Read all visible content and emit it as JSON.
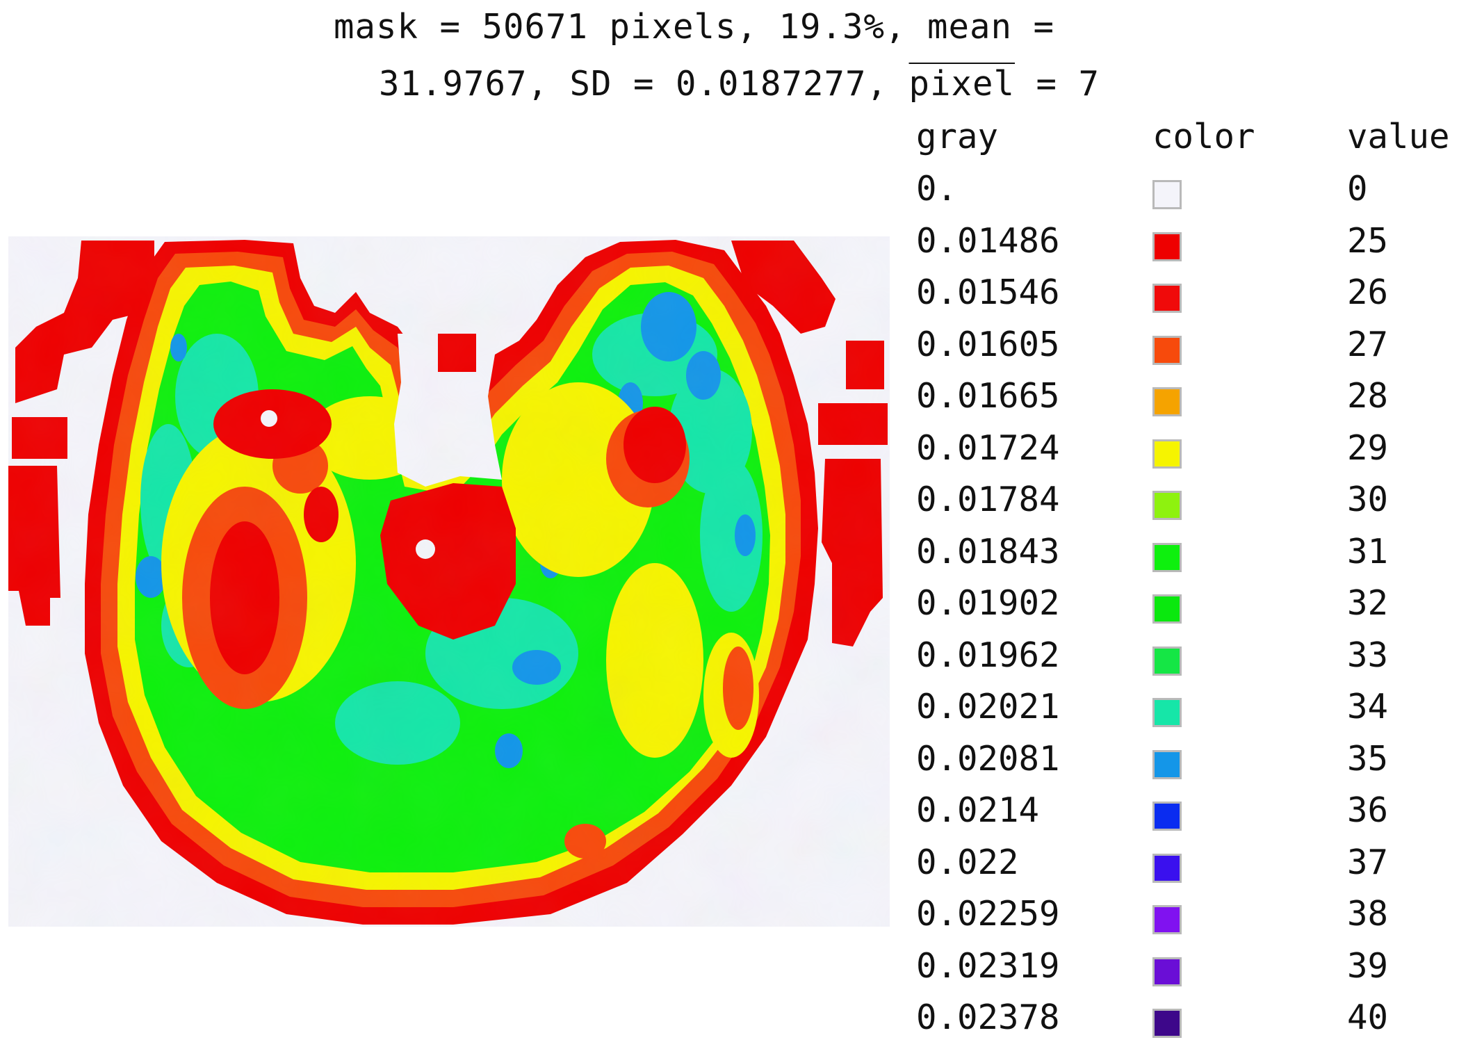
{
  "header": {
    "line1": "mask = 50671 pixels, 19.3%, mean =",
    "line2_prefix": "31.9767, SD = 0.0187277, ",
    "line2_over": "pixel",
    "line2_suffix": " = 7"
  },
  "legend": {
    "col_gray": "gray",
    "col_color": "color",
    "col_value": "value",
    "rows": [
      {
        "gray": "0.",
        "color": "#f4f4fa",
        "value": "0"
      },
      {
        "gray": "0.01486",
        "color": "#ee0000",
        "value": "25"
      },
      {
        "gray": "0.01546",
        "color": "#f00a0a",
        "value": "26"
      },
      {
        "gray": "0.01605",
        "color": "#f74a0c",
        "value": "27"
      },
      {
        "gray": "0.01665",
        "color": "#f5a300",
        "value": "28"
      },
      {
        "gray": "0.01724",
        "color": "#f6f400",
        "value": "29"
      },
      {
        "gray": "0.01784",
        "color": "#8ef20f",
        "value": "30"
      },
      {
        "gray": "0.01843",
        "color": "#0ef00e",
        "value": "31"
      },
      {
        "gray": "0.01902",
        "color": "#0ae80e",
        "value": "32"
      },
      {
        "gray": "0.01962",
        "color": "#15e645",
        "value": "33"
      },
      {
        "gray": "0.02021",
        "color": "#16e6a8",
        "value": "34"
      },
      {
        "gray": "0.02081",
        "color": "#1496e8",
        "value": "35"
      },
      {
        "gray": "0.0214",
        "color": "#0a2cf0",
        "value": "36"
      },
      {
        "gray": "0.022",
        "color": "#3a10ee",
        "value": "37"
      },
      {
        "gray": "0.02259",
        "color": "#8012f0",
        "value": "38"
      },
      {
        "gray": "0.02319",
        "color": "#6a0ed6",
        "value": "39"
      },
      {
        "gray": "0.02378",
        "color": "#3d078a",
        "value": "40"
      }
    ]
  }
}
